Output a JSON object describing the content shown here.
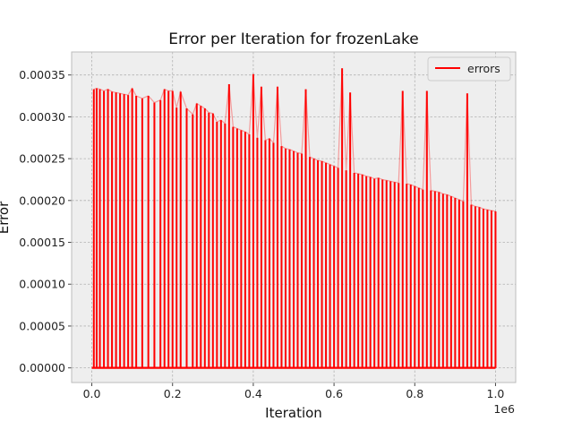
{
  "chart_data": {
    "type": "line",
    "title": "Error per Iteration for frozenLake",
    "xlabel": "Iteration",
    "ylabel": "Error",
    "x_offset_label": "1e6",
    "xlim": [
      -0.05,
      1.05
    ],
    "ylim": [
      -1.75e-05,
      0.0003775
    ],
    "x_ticks": [
      0.0,
      0.2,
      0.4,
      0.6,
      0.8,
      1.0
    ],
    "x_tick_labels": [
      "0.0",
      "0.2",
      "0.4",
      "0.6",
      "0.8",
      "1.0"
    ],
    "y_ticks": [
      0.0,
      5e-05,
      0.0001,
      0.00015,
      0.0002,
      0.00025,
      0.0003,
      0.00035
    ],
    "y_tick_labels": [
      "0.00000",
      "0.00005",
      "0.00010",
      "0.00015",
      "0.00020",
      "0.00025",
      "0.00030",
      "0.00035"
    ],
    "grid": true,
    "legend_position": "top-right",
    "series": [
      {
        "name": "errors",
        "color": "#ff0000",
        "spike_x": [
          0.005,
          0.012,
          0.02,
          0.03,
          0.04,
          0.05,
          0.06,
          0.07,
          0.08,
          0.09,
          0.1,
          0.11,
          0.125,
          0.14,
          0.155,
          0.17,
          0.18,
          0.19,
          0.2,
          0.21,
          0.22,
          0.235,
          0.25,
          0.26,
          0.27,
          0.28,
          0.29,
          0.3,
          0.31,
          0.32,
          0.33,
          0.34,
          0.35,
          0.36,
          0.37,
          0.38,
          0.39,
          0.4,
          0.41,
          0.42,
          0.43,
          0.44,
          0.45,
          0.46,
          0.47,
          0.48,
          0.49,
          0.5,
          0.51,
          0.52,
          0.53,
          0.54,
          0.55,
          0.56,
          0.57,
          0.58,
          0.59,
          0.6,
          0.61,
          0.62,
          0.63,
          0.64,
          0.65,
          0.66,
          0.67,
          0.68,
          0.69,
          0.7,
          0.71,
          0.72,
          0.73,
          0.74,
          0.75,
          0.76,
          0.77,
          0.78,
          0.79,
          0.8,
          0.81,
          0.82,
          0.83,
          0.84,
          0.85,
          0.86,
          0.87,
          0.88,
          0.89,
          0.9,
          0.91,
          0.92,
          0.93,
          0.94,
          0.95,
          0.96,
          0.97,
          0.98,
          0.99,
          1.0
        ],
        "spike_y": [
          0.000333,
          0.000334,
          0.000333,
          0.000331,
          0.000333,
          0.00033,
          0.000329,
          0.000328,
          0.000327,
          0.000326,
          0.000334,
          0.000325,
          0.000322,
          0.000325,
          0.000317,
          0.00032,
          0.000333,
          0.000331,
          0.000331,
          0.000311,
          0.00033,
          0.00031,
          0.000303,
          0.000316,
          0.000313,
          0.00031,
          0.000305,
          0.000304,
          0.000294,
          0.000296,
          0.000292,
          0.000339,
          0.000288,
          0.000286,
          0.000284,
          0.000282,
          0.000279,
          0.000351,
          0.000275,
          0.000336,
          0.000272,
          0.000274,
          0.000269,
          0.000336,
          0.000265,
          0.000262,
          0.000261,
          0.000259,
          0.000257,
          0.000256,
          0.000333,
          0.000252,
          0.00025,
          0.000248,
          0.000247,
          0.000245,
          0.000243,
          0.000241,
          0.000239,
          0.000358,
          0.000236,
          0.000329,
          0.000233,
          0.000232,
          0.000231,
          0.000229,
          0.000228,
          0.000226,
          0.000227,
          0.000225,
          0.000224,
          0.000223,
          0.000222,
          0.000221,
          0.000331,
          0.00022,
          0.000219,
          0.000217,
          0.000215,
          0.000213,
          0.000331,
          0.000212,
          0.000211,
          0.00021,
          0.000208,
          0.000207,
          0.000205,
          0.000203,
          0.000201,
          0.000199,
          0.000328,
          0.000195,
          0.000193,
          0.000192,
          0.00019,
          0.000189,
          0.000188,
          0.000187
        ]
      }
    ]
  }
}
